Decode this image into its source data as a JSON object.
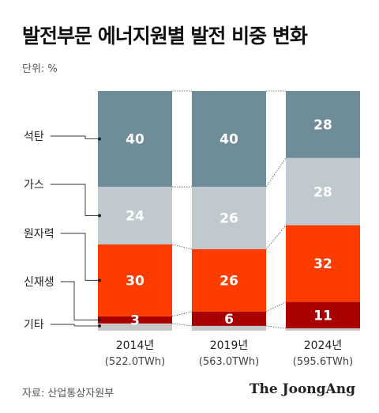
{
  "title": "발전부문 에너지원별 발전 비중 변화",
  "unit": "단위: %",
  "source": "자료: 산업통상자원부",
  "brand": "The JoongAng",
  "colors": {
    "coal": "#6e8d98",
    "gas": "#bfc9ce",
    "nuclear": "#ff3c00",
    "renewable": "#a80000",
    "other": "#c7c7c7"
  },
  "chart_data": {
    "type": "bar",
    "stacked": true,
    "normalized_percent": true,
    "categories": [
      "2014년",
      "2019년",
      "2024년"
    ],
    "subcategories": [
      "(522.0TWh)",
      "(563.0TWh)",
      "(595.6TWh)"
    ],
    "series": [
      {
        "name": "석탄",
        "key": "coal",
        "values": [
          40,
          40,
          28
        ]
      },
      {
        "name": "가스",
        "key": "gas",
        "values": [
          24,
          26,
          28
        ]
      },
      {
        "name": "원자력",
        "key": "nuclear",
        "values": [
          30,
          26,
          32
        ]
      },
      {
        "name": "신재생",
        "key": "renewable",
        "values": [
          3,
          6,
          11
        ]
      },
      {
        "name": "기타",
        "key": "other",
        "values": [
          3,
          2,
          1
        ]
      }
    ],
    "value_labels": [
      [
        "40",
        "24",
        "30",
        "3",
        ""
      ],
      [
        "40",
        "26",
        "26",
        "6",
        ""
      ],
      [
        "28",
        "28",
        "32",
        "11",
        ""
      ]
    ]
  }
}
